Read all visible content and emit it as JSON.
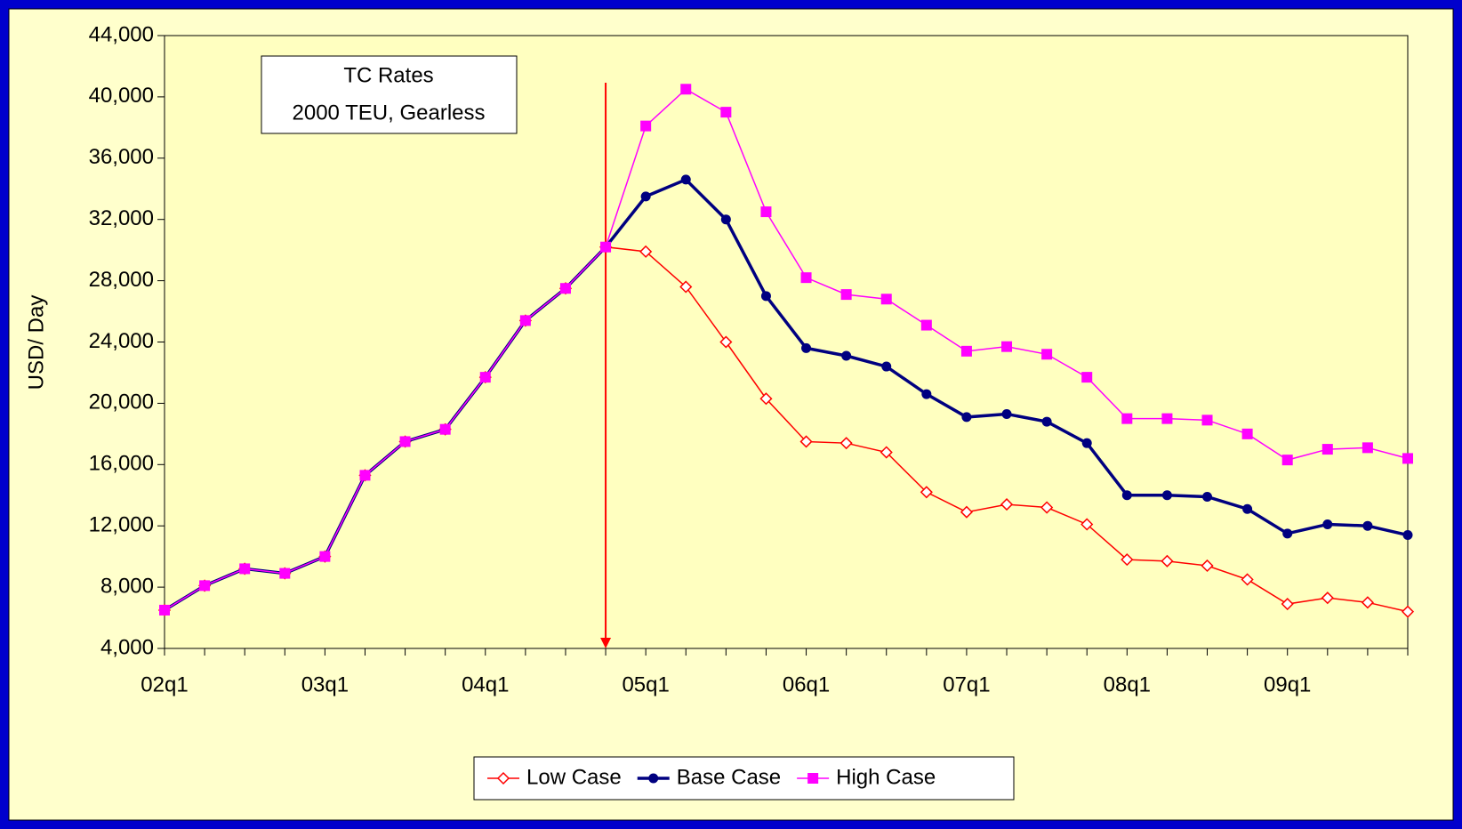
{
  "chart_data": {
    "type": "line",
    "annotation": [
      "TC Rates",
      "2000 TEU, Gearless"
    ],
    "y_label": "USD/ Day",
    "categories": [
      "02q1",
      null,
      null,
      null,
      "03q1",
      null,
      null,
      null,
      "04q1",
      null,
      null,
      null,
      "05q1",
      null,
      null,
      null,
      "06q1",
      null,
      null,
      null,
      "07q1",
      null,
      null,
      null,
      "08q1",
      null,
      null,
      null,
      "09q1",
      null,
      null,
      null
    ],
    "series": [
      {
        "name": "Low Case",
        "color": "#ff0000",
        "marker": "diamond-open",
        "values": [
          6500,
          8100,
          9200,
          8900,
          10000,
          15300,
          17500,
          18300,
          21700,
          25400,
          27500,
          30200,
          29900,
          27600,
          24000,
          20300,
          17500,
          17400,
          16800,
          14200,
          12900,
          13400,
          13200,
          12100,
          9800,
          9700,
          9400,
          8500,
          6900,
          7300,
          7000,
          6400
        ]
      },
      {
        "name": "Base Case",
        "color": "#000080",
        "marker": "circle",
        "values": [
          6500,
          8100,
          9200,
          8900,
          10000,
          15300,
          17500,
          18300,
          21700,
          25400,
          27500,
          30200,
          33500,
          34600,
          32000,
          27000,
          23600,
          23100,
          22400,
          20600,
          19100,
          19300,
          18800,
          17400,
          14000,
          14000,
          13900,
          13100,
          11500,
          12100,
          12000,
          11400
        ]
      },
      {
        "name": "High Case",
        "color": "#ff00ff",
        "marker": "square",
        "values": [
          6500,
          8100,
          9200,
          8900,
          10000,
          15300,
          17500,
          18300,
          21700,
          25400,
          27500,
          30200,
          38100,
          40500,
          39000,
          32500,
          28200,
          27100,
          26800,
          25100,
          23400,
          23700,
          23200,
          21700,
          19000,
          19000,
          18900,
          18000,
          16300,
          17000,
          17100,
          16400
        ]
      }
    ],
    "ylim": [
      4000,
      44000
    ],
    "yticks": [
      {
        "value": 4000,
        "label": "4,000"
      },
      {
        "value": 8000,
        "label": "8,000"
      },
      {
        "value": 12000,
        "label": "12,000"
      },
      {
        "value": 16000,
        "label": "16,000"
      },
      {
        "value": 20000,
        "label": "20,000"
      },
      {
        "value": 24000,
        "label": "24,000"
      },
      {
        "value": 28000,
        "label": "28,000"
      },
      {
        "value": 32000,
        "label": "32,000"
      },
      {
        "value": 36000,
        "label": "36,000"
      },
      {
        "value": 40000,
        "label": "40,000"
      },
      {
        "value": 44000,
        "label": "44,000"
      }
    ],
    "legend": "bottom"
  }
}
